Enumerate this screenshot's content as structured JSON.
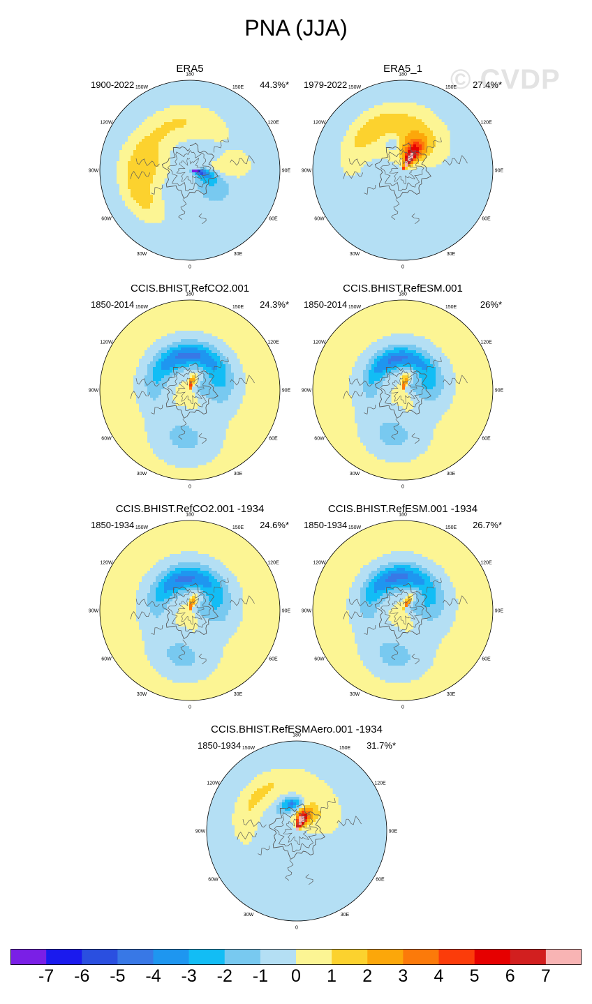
{
  "title": "PNA (JJA)",
  "watermark": "© CVDP",
  "lon_labels": [
    "180",
    "150E",
    "120E",
    "90E",
    "60E",
    "30E",
    "0",
    "30W",
    "60W",
    "90W",
    "120W",
    "150W"
  ],
  "colors": {
    "palette": [
      "#7a1fe6",
      "#1a1aee",
      "#2a4fe0",
      "#3878e6",
      "#1e96f0",
      "#12bdf5",
      "#78c9f0",
      "#b4dff4",
      "#fcf594",
      "#fcd22e",
      "#fca70a",
      "#fc7a0a",
      "#fc3c0a",
      "#e60000",
      "#d21f1f",
      "#f8b4b4"
    ],
    "coast": "#5a5a5a"
  },
  "colorbar": {
    "labels": [
      "-7",
      "-6",
      "-5",
      "-4",
      "-3",
      "-2",
      "-1",
      "0",
      "1",
      "2",
      "3",
      "4",
      "5",
      "6",
      "7"
    ]
  },
  "chart_data": {
    "type": "heatmap",
    "title": "PNA (JJA)",
    "units_levels": [
      -7,
      -6,
      -5,
      -4,
      -3,
      -2,
      -1,
      0,
      1,
      2,
      3,
      4,
      5,
      6,
      7
    ],
    "projection": "polar stereographic, North Hemisphere",
    "panels": [
      {
        "name": "ERA5",
        "period": "1900-2022",
        "pct": "44.3%*",
        "background": -0.5,
        "features": [
          {
            "kind": "blob",
            "lat": 86,
            "lon": 80,
            "sx": 7,
            "sy": 6,
            "val": -3.5
          },
          {
            "kind": "blob",
            "lat": 80,
            "lon": 80,
            "sx": 12,
            "sy": 10,
            "val": -2.5
          },
          {
            "kind": "blob",
            "lat": 70,
            "lon": 60,
            "sx": 22,
            "sy": 16,
            "val": -1.5
          },
          {
            "kind": "blob",
            "lat": 42,
            "lon": -160,
            "sx": 45,
            "sy": 12,
            "val": 0.5
          },
          {
            "kind": "blob",
            "lat": 45,
            "lon": -95,
            "sx": 22,
            "sy": 16,
            "val": 0.5
          },
          {
            "kind": "blob",
            "lat": 35,
            "lon": -60,
            "sx": 20,
            "sy": 10,
            "val": 0.5
          },
          {
            "kind": "blob",
            "lat": 55,
            "lon": 95,
            "sx": 12,
            "sy": 16,
            "val": 0.5
          }
        ]
      },
      {
        "name": "ERA5_1",
        "period": "1979-2022",
        "pct": "27.4%*",
        "background": -0.5,
        "features": [
          {
            "kind": "blob",
            "lat": 80,
            "lon": 150,
            "sx": 12,
            "sy": 12,
            "val": 2.5
          },
          {
            "kind": "blob",
            "lat": 76,
            "lon": 150,
            "sx": 20,
            "sy": 18,
            "val": 1.5
          },
          {
            "kind": "blob",
            "lat": 62,
            "lon": 170,
            "sx": 45,
            "sy": 22,
            "val": 0.5
          },
          {
            "kind": "blob",
            "lat": 38,
            "lon": -140,
            "sx": 35,
            "sy": 10,
            "val": 0.5
          },
          {
            "kind": "blob",
            "lat": 62,
            "lon": -160,
            "sx": 10,
            "sy": 6,
            "val": -1.5
          }
        ]
      },
      {
        "name": "CCIS.BHIST.RefCO2.001",
        "period": "1850-2014",
        "pct": "24.3%*",
        "background": 0.5,
        "features": [
          {
            "kind": "blob",
            "lat": 55,
            "lon": -175,
            "sx": 55,
            "sy": 8,
            "val": -1.5
          },
          {
            "kind": "blob",
            "lat": 55,
            "lon": -175,
            "sx": 90,
            "sy": 16,
            "val": -0.5
          },
          {
            "kind": "blob",
            "lat": 75,
            "lon": 95,
            "sx": 30,
            "sy": 14,
            "val": -0.5
          },
          {
            "kind": "blob",
            "lat": 40,
            "lon": -5,
            "sx": 25,
            "sy": 18,
            "val": -0.5
          },
          {
            "kind": "blob",
            "lat": 85,
            "lon": 170,
            "sx": 8,
            "sy": 5,
            "val": 2.5
          },
          {
            "kind": "blob",
            "lat": 82,
            "lon": 160,
            "sx": 14,
            "sy": 10,
            "val": 1.5
          }
        ]
      },
      {
        "name": "CCIS.BHIST.RefESM.001",
        "period": "1850-2014",
        "pct": "26%*",
        "background": 0.5,
        "features": [
          {
            "kind": "blob",
            "lat": 58,
            "lon": -170,
            "sx": 50,
            "sy": 7,
            "val": -1.5
          },
          {
            "kind": "blob",
            "lat": 58,
            "lon": -170,
            "sx": 95,
            "sy": 16,
            "val": -0.5
          },
          {
            "kind": "blob",
            "lat": 72,
            "lon": 100,
            "sx": 30,
            "sy": 14,
            "val": -0.5
          },
          {
            "kind": "blob",
            "lat": 42,
            "lon": -10,
            "sx": 25,
            "sy": 16,
            "val": -0.5
          },
          {
            "kind": "blob",
            "lat": 84,
            "lon": 165,
            "sx": 8,
            "sy": 5,
            "val": 2.5
          },
          {
            "kind": "blob",
            "lat": 80,
            "lon": 165,
            "sx": 15,
            "sy": 10,
            "val": 1.5
          }
        ]
      },
      {
        "name": "CCIS.BHIST.RefCO2.001 -1934",
        "period": "1850-1934",
        "pct": "24.6%*",
        "background": 0.5,
        "features": [
          {
            "kind": "blob",
            "lat": 58,
            "lon": -172,
            "sx": 50,
            "sy": 8,
            "val": -1.5
          },
          {
            "kind": "blob",
            "lat": 56,
            "lon": -172,
            "sx": 92,
            "sy": 16,
            "val": -0.5
          },
          {
            "kind": "blob",
            "lat": 74,
            "lon": 92,
            "sx": 30,
            "sy": 14,
            "val": -0.5
          },
          {
            "kind": "blob",
            "lat": 42,
            "lon": -8,
            "sx": 25,
            "sy": 16,
            "val": -0.5
          },
          {
            "kind": "blob",
            "lat": 85,
            "lon": 165,
            "sx": 8,
            "sy": 5,
            "val": 2.5
          },
          {
            "kind": "blob",
            "lat": 81,
            "lon": 160,
            "sx": 14,
            "sy": 10,
            "val": 1.5
          }
        ]
      },
      {
        "name": "CCIS.BHIST.RefESM.001 -1934",
        "period": "1850-1934",
        "pct": "26.7%*",
        "background": 0.5,
        "features": [
          {
            "kind": "blob",
            "lat": 56,
            "lon": -168,
            "sx": 48,
            "sy": 8,
            "val": -1.5
          },
          {
            "kind": "blob",
            "lat": 56,
            "lon": -170,
            "sx": 95,
            "sy": 16,
            "val": -0.5
          },
          {
            "kind": "blob",
            "lat": 73,
            "lon": 100,
            "sx": 30,
            "sy": 14,
            "val": -0.5
          },
          {
            "kind": "blob",
            "lat": 42,
            "lon": -8,
            "sx": 25,
            "sy": 16,
            "val": -0.5
          },
          {
            "kind": "blob",
            "lat": 83,
            "lon": 150,
            "sx": 8,
            "sy": 5,
            "val": 2.5
          },
          {
            "kind": "blob",
            "lat": 80,
            "lon": 150,
            "sx": 15,
            "sy": 10,
            "val": 1.5
          }
        ]
      },
      {
        "name": "CCIS.BHIST.RefESMAero.001 -1934",
        "period": "1850-1934",
        "pct": "31.7%*",
        "background": -0.5,
        "features": [
          {
            "kind": "blob",
            "lat": 63,
            "lon": -172,
            "sx": 14,
            "sy": 4,
            "val": -2.5
          },
          {
            "kind": "blob",
            "lat": 62,
            "lon": -170,
            "sx": 35,
            "sy": 8,
            "val": -1.5
          },
          {
            "kind": "blob",
            "lat": 84,
            "lon": 160,
            "sx": 8,
            "sy": 5,
            "val": 3.5
          },
          {
            "kind": "blob",
            "lat": 82,
            "lon": 160,
            "sx": 12,
            "sy": 8,
            "val": 2.5
          },
          {
            "kind": "blob",
            "lat": 78,
            "lon": 150,
            "sx": 18,
            "sy": 12,
            "val": 1.5
          },
          {
            "kind": "blob",
            "lat": 68,
            "lon": 150,
            "sx": 45,
            "sy": 20,
            "val": 0.5
          },
          {
            "kind": "blob",
            "lat": 38,
            "lon": -130,
            "sx": 35,
            "sy": 10,
            "val": 0.5
          }
        ]
      }
    ]
  }
}
